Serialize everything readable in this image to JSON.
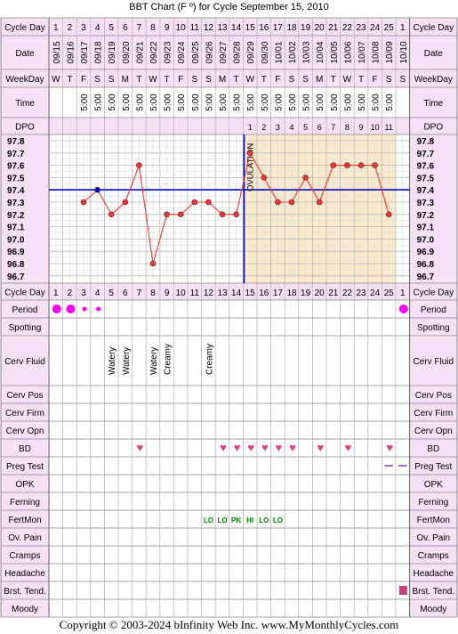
{
  "title": "BBT Chart (F º) for Cycle September 15, 2010",
  "copyright": "Copyright © 2003-2024 bInfinity Web Inc.    www.MyMonthlyCycles.com",
  "colors": {
    "header_bg": "#f5e0f5",
    "grid": "#b8b8b8",
    "post_ovulation_bg": "#fbe9cd",
    "line": "#ff3030",
    "coverline": "#0000cc",
    "period": "#ff00ff",
    "heart": "#e0457a",
    "fertmon": "#008000",
    "preg_test": "#8040c0",
    "breast_tend": "#c04080"
  },
  "row_labels": {
    "cycle_day": "Cycle Day",
    "date": "Date",
    "weekday": "WeekDay",
    "time": "Time",
    "dpo": "DPO",
    "period": "Period",
    "spotting": "Spotting",
    "cerv_fluid": "Cerv Fluid",
    "cerv_pos": "Cerv Pos",
    "cerv_firm": "Cerv Firm",
    "cerv_opn": "Cerv Opn",
    "bd": "BD",
    "preg_test": "Preg Test",
    "opk": "OPK",
    "ferning": "Ferning",
    "fertmon": "FertMon",
    "ov_pain": "Ov. Pain",
    "cramps": "Cramps",
    "headache": "Headache",
    "brst_tend": "Brst. Tend.",
    "moody": "Moody"
  },
  "chart_data": {
    "type": "line",
    "title": "BBT Chart (F º) for Cycle September 15, 2010",
    "cycle_days": [
      "1",
      "2",
      "3",
      "4",
      "5",
      "6",
      "7",
      "8",
      "9",
      "10",
      "11",
      "12",
      "13",
      "14",
      "15",
      "16",
      "17",
      "18",
      "19",
      "20",
      "21",
      "22",
      "23",
      "24",
      "25",
      "1"
    ],
    "dates": [
      "09/15",
      "09/16",
      "09/17",
      "09/18",
      "09/19",
      "09/20",
      "09/21",
      "09/22",
      "09/23",
      "09/24",
      "09/25",
      "09/26",
      "09/27",
      "09/28",
      "09/29",
      "09/30",
      "10/01",
      "10/02",
      "10/03",
      "10/04",
      "10/05",
      "10/06",
      "10/07",
      "10/08",
      "10/09",
      "10/10"
    ],
    "weekdays": [
      "W",
      "T",
      "F",
      "S",
      "S",
      "M",
      "T",
      "W",
      "T",
      "F",
      "S",
      "S",
      "M",
      "T",
      "W",
      "T",
      "F",
      "S",
      "S",
      "M",
      "T",
      "W",
      "T",
      "F",
      "S",
      "S"
    ],
    "times": [
      "",
      "",
      "5:00",
      "5:00",
      "5:00",
      "5:00",
      "5:00",
      "5:00",
      "5:00",
      "5:00",
      "5:00",
      "5:00",
      "5:00",
      "5:00",
      "5:00",
      "5:00",
      "5:00",
      "5:00",
      "5:00",
      "5:00",
      "5:00",
      "5:00",
      "5:00",
      "5:00",
      "5:00",
      ""
    ],
    "dpo": [
      "",
      "",
      "",
      "",
      "",
      "",
      "",
      "",
      "",
      "",
      "",
      "",
      "",
      "",
      "1",
      "2",
      "3",
      "4",
      "5",
      "6",
      "7",
      "8",
      "9",
      "10",
      "11",
      ""
    ],
    "temperatures": [
      null,
      null,
      97.3,
      97.4,
      97.2,
      97.3,
      97.6,
      96.8,
      97.2,
      97.2,
      97.3,
      97.3,
      97.2,
      97.2,
      97.7,
      97.5,
      97.3,
      97.3,
      97.5,
      97.3,
      97.6,
      97.6,
      97.6,
      97.6,
      97.2,
      null
    ],
    "y_ticks": [
      "97.8",
      "97.7",
      "97.6",
      "97.5",
      "97.4",
      "97.3",
      "97.2",
      "97.1",
      "97.0",
      "96.9",
      "96.8",
      "96.7"
    ],
    "ylim": [
      96.7,
      97.8
    ],
    "coverline": 97.4,
    "ovulation_day_index": 13,
    "ovulation_label": "OVULATION",
    "grid": true
  },
  "observations": {
    "period": [
      2,
      2,
      1,
      1,
      0,
      0,
      0,
      0,
      0,
      0,
      0,
      0,
      0,
      0,
      0,
      0,
      0,
      0,
      0,
      0,
      0,
      0,
      0,
      0,
      0,
      2
    ],
    "cerv_fluid": [
      "",
      "",
      "",
      "",
      "Watery",
      "Watery",
      "",
      "Watery",
      "Creamy",
      "",
      "",
      "Creamy",
      "",
      "",
      "",
      "",
      "",
      "",
      "",
      "",
      "",
      "",
      "",
      "",
      "",
      ""
    ],
    "bd": [
      0,
      0,
      0,
      0,
      0,
      0,
      1,
      0,
      0,
      0,
      0,
      0,
      1,
      1,
      1,
      1,
      1,
      1,
      0,
      1,
      0,
      1,
      0,
      0,
      1,
      0
    ],
    "preg_test": [
      0,
      0,
      0,
      0,
      0,
      0,
      0,
      0,
      0,
      0,
      0,
      0,
      0,
      0,
      0,
      0,
      0,
      0,
      0,
      0,
      0,
      0,
      0,
      0,
      1,
      1
    ],
    "fertmon": [
      "",
      "",
      "",
      "",
      "",
      "",
      "",
      "",
      "",
      "",
      "",
      "LO",
      "LO",
      "PK",
      "HI",
      "LO",
      "LO",
      "",
      "",
      "",
      "",
      "",
      "",
      "",
      "",
      ""
    ],
    "brst_tend": [
      0,
      0,
      0,
      0,
      0,
      0,
      0,
      0,
      0,
      0,
      0,
      0,
      0,
      0,
      0,
      0,
      0,
      0,
      0,
      0,
      0,
      0,
      0,
      0,
      0,
      1
    ]
  }
}
